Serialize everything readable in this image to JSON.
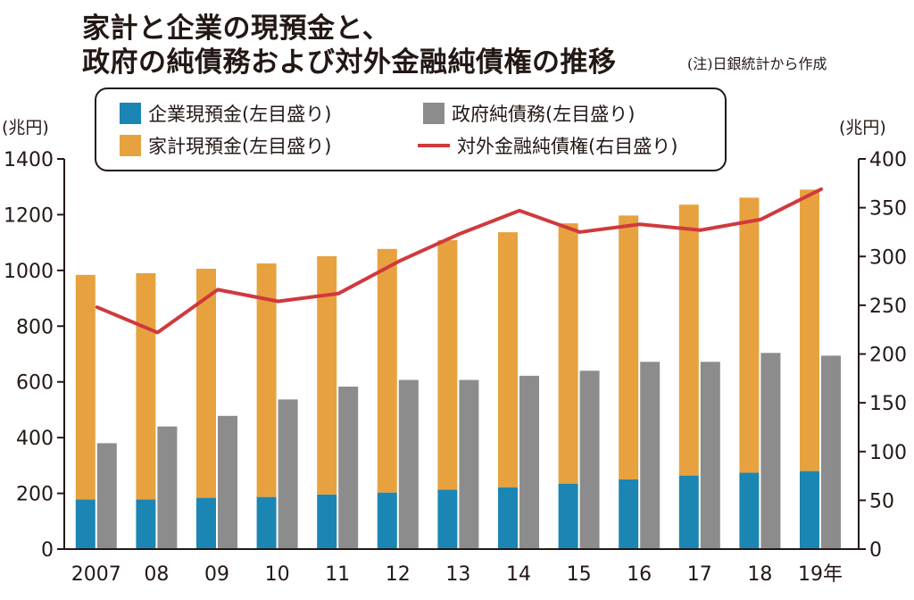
{
  "title_line1": "家計と企業の現預金と、",
  "title_line2": "政府の純債務および対外金融純債権の推移",
  "note": "(注)日銀統計から作成",
  "unit_left": "(兆円)",
  "unit_right": "(兆円)",
  "legend": {
    "corporate": "企業現預金(左目盛り)",
    "household": "家計現預金(左目盛り)",
    "government": "政府純債務(左目盛り)",
    "external": "対外金融純債権(右目盛り)"
  },
  "colors": {
    "corporate": "#1b86b4",
    "household": "#e7a23f",
    "government": "#8c8c8c",
    "external": "#d0393d"
  },
  "chart_data": {
    "type": "bar",
    "categories": [
      "2007",
      "08",
      "09",
      "10",
      "11",
      "12",
      "13",
      "14",
      "15",
      "16",
      "17",
      "18",
      "19年"
    ],
    "left_axis": {
      "ylim": [
        0,
        1400
      ],
      "ticks": [
        0,
        200,
        400,
        600,
        800,
        1000,
        1200,
        1400
      ]
    },
    "right_axis": {
      "ylim": [
        0,
        400
      ],
      "ticks": [
        0,
        50,
        100,
        150,
        200,
        250,
        300,
        350,
        400
      ]
    },
    "series": [
      {
        "name": "企業現預金(左目盛り)",
        "type": "stacked-bar",
        "axis": "left",
        "values": [
          178,
          178,
          184,
          187,
          196,
          203,
          213,
          222,
          235,
          250,
          264,
          274,
          280
        ]
      },
      {
        "name": "家計現預金(左目盛り)",
        "type": "stacked-bar",
        "axis": "left",
        "values": [
          806,
          812,
          822,
          838,
          855,
          874,
          896,
          915,
          934,
          947,
          972,
          987,
          1010
        ]
      },
      {
        "name": "政府純債務(左目盛り)",
        "type": "bar",
        "axis": "left",
        "values": [
          380,
          440,
          478,
          537,
          583,
          607,
          607,
          622,
          640,
          672,
          672,
          704,
          694
        ]
      },
      {
        "name": "対外金融純債権(右目盛り)",
        "type": "line",
        "axis": "right",
        "values": [
          248,
          222,
          266,
          254,
          262,
          295,
          323,
          347,
          325,
          333,
          327,
          338,
          369
        ]
      }
    ]
  }
}
